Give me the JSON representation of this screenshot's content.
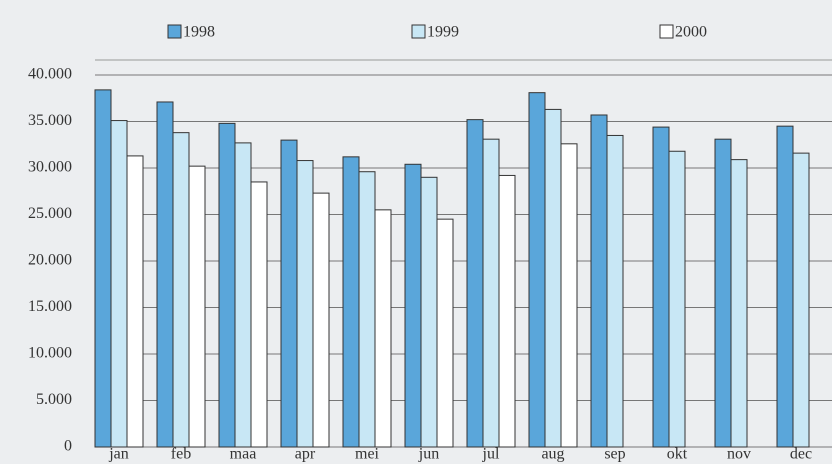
{
  "chart_data": {
    "type": "bar",
    "categories": [
      "jan",
      "feb",
      "maa",
      "apr",
      "mei",
      "jun",
      "jul",
      "aug",
      "sep",
      "okt",
      "nov",
      "dec"
    ],
    "series": [
      {
        "name": "1998",
        "color": "#5aa6da",
        "values": [
          38400,
          37100,
          34800,
          33000,
          31200,
          30400,
          35200,
          38100,
          35700,
          34400,
          33100,
          34500
        ]
      },
      {
        "name": "1999",
        "color": "#c8e7f5",
        "values": [
          35100,
          33800,
          32700,
          30800,
          29600,
          29000,
          33100,
          36300,
          33500,
          31800,
          30900,
          31600
        ]
      },
      {
        "name": "2000",
        "color": "#ffffff",
        "values": [
          31300,
          30200,
          28500,
          27300,
          25500,
          24500,
          29200,
          32600,
          null,
          null,
          null,
          null
        ]
      }
    ],
    "ylim": [
      0,
      40000
    ],
    "yticks": [
      0,
      {
        "value": 5000,
        "label": "5.000"
      },
      {
        "value": 10000,
        "label": "10.000"
      },
      {
        "value": 15000,
        "label": "15.000"
      },
      {
        "value": 20000,
        "label": "20.000"
      },
      {
        "value": 25000,
        "label": "25.000"
      },
      {
        "value": 30000,
        "label": "30.000"
      },
      {
        "value": 35000,
        "label": "35.000"
      },
      {
        "value": 40000,
        "label": "40.000"
      }
    ],
    "grid": true
  }
}
